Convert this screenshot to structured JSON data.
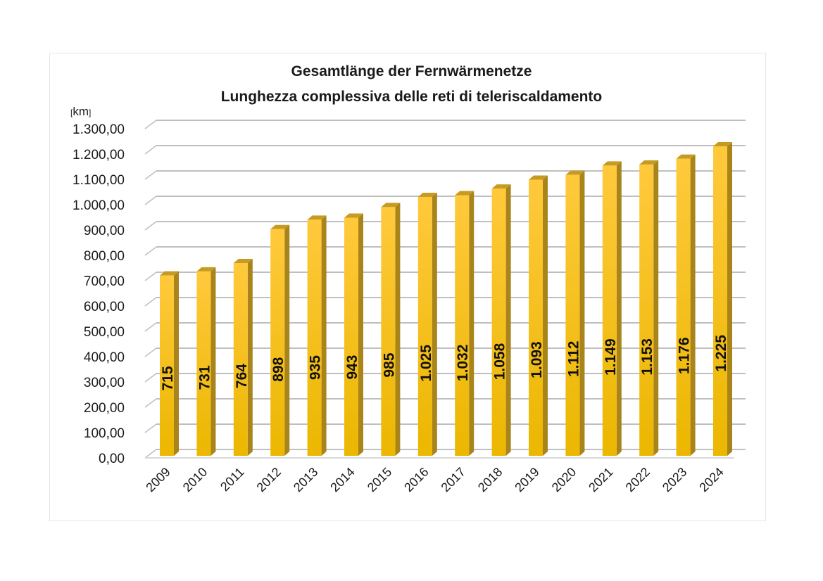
{
  "chart_data": {
    "type": "bar",
    "title": "Gesamtlänge der Fernwärmenetze",
    "subtitle": "Lunghezza complessiva delle reti di teleriscaldamento",
    "unit_label": "km",
    "xlabel": "",
    "ylabel": "km",
    "ylim": [
      0,
      1300
    ],
    "y_ticks": [
      "0,00",
      "100,00",
      "200,00",
      "300,00",
      "400,00",
      "500,00",
      "600,00",
      "700,00",
      "800,00",
      "900,00",
      "1.000,00",
      "1.100,00",
      "1.200,00",
      "1.300,00"
    ],
    "categories": [
      "2009",
      "2010",
      "2011",
      "2012",
      "2013",
      "2014",
      "2015",
      "2016",
      "2017",
      "2018",
      "2019",
      "2020",
      "2021",
      "2022",
      "2023",
      "2024"
    ],
    "values": [
      715,
      731,
      764,
      898,
      935,
      943,
      985,
      1025,
      1032,
      1058,
      1093,
      1112,
      1149,
      1153,
      1176,
      1225
    ],
    "data_labels": [
      "715",
      "731",
      "764",
      "898",
      "935",
      "943",
      "985",
      "1.025",
      "1.032",
      "1.058",
      "1.093",
      "1.112",
      "1.149",
      "1.153",
      "1.176",
      "1.225"
    ],
    "grid": true,
    "style": "3d-column",
    "legend": "none",
    "colors": {
      "bar_front_top": "#FFC93C",
      "bar_front_bottom": "#EBB700",
      "bar_side": "#A8841A",
      "bar_top": "#C79A22",
      "grid": "#BFBFBF"
    }
  }
}
